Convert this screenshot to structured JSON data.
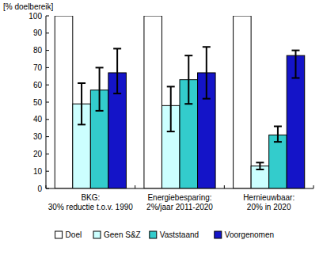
{
  "chart_data": {
    "type": "bar",
    "y_label": "[% doelbereik]",
    "categories": [
      "BKG:\n30% reductie t.o.v. 1990",
      "Energiebesparing:\n2%/jaar 2011-2020",
      "Hernieuwbaar:\n20% in 2020"
    ],
    "series": [
      {
        "name": "Doel",
        "color": "#ffffff",
        "values": [
          100,
          100,
          100
        ]
      },
      {
        "name": "Geen S&Z",
        "color": "#ccffff",
        "values": [
          49,
          48,
          13
        ],
        "errors": [
          [
            12,
            12
          ],
          [
            15,
            11
          ],
          [
            2,
            2
          ]
        ]
      },
      {
        "name": "Vaststaand",
        "color": "#33cccc",
        "values": [
          57,
          63,
          31
        ],
        "errors": [
          [
            12,
            13
          ],
          [
            14,
            14
          ],
          [
            4,
            5
          ]
        ]
      },
      {
        "name": "Voorgenomen",
        "color": "#1414c8",
        "values": [
          67,
          67,
          77
        ],
        "errors": [
          [
            12,
            14
          ],
          [
            15,
            15
          ],
          [
            13,
            3
          ]
        ]
      }
    ],
    "ylim": [
      0,
      100
    ],
    "yticks": [
      0,
      10,
      20,
      30,
      40,
      50,
      60,
      70,
      80,
      90,
      100
    ],
    "grid": false,
    "legend": "bottom"
  }
}
